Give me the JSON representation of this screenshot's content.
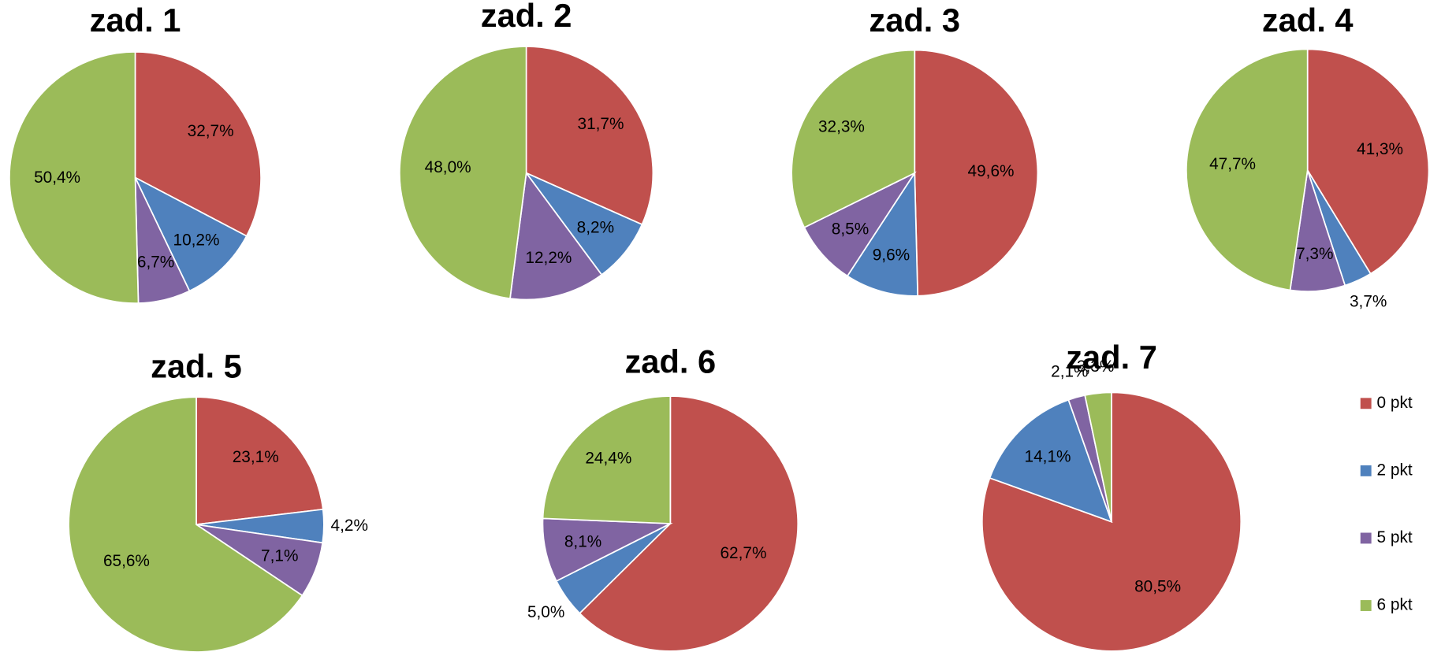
{
  "chart_data": [
    {
      "type": "pie",
      "title": "zad. 1",
      "categories": [
        "0 pkt",
        "2 pkt",
        "5 pkt",
        "6 pkt"
      ],
      "colors": [
        "#c0504d",
        "#4f81bd",
        "#8064a2",
        "#9bbb59"
      ],
      "values": [
        32.7,
        10.2,
        6.7,
        50.4
      ],
      "value_labels": [
        "32,7%",
        "10,2%",
        "6,7%",
        "50,4%"
      ],
      "legend": "right"
    },
    {
      "type": "pie",
      "title": "zad. 2",
      "categories": [
        "0 pkt",
        "2 pkt",
        "5 pkt",
        "6 pkt"
      ],
      "colors": [
        "#c0504d",
        "#4f81bd",
        "#8064a2",
        "#9bbb59"
      ],
      "values": [
        31.7,
        8.2,
        12.2,
        48.0
      ],
      "value_labels": [
        "31,7%",
        "8,2%",
        "12,2%",
        "48,0%"
      ]
    },
    {
      "type": "pie",
      "title": "zad. 3",
      "categories": [
        "0 pkt",
        "2 pkt",
        "5 pkt",
        "6 pkt"
      ],
      "colors": [
        "#c0504d",
        "#4f81bd",
        "#8064a2",
        "#9bbb59"
      ],
      "values": [
        49.6,
        9.6,
        8.5,
        32.3
      ],
      "value_labels": [
        "49,6%",
        "9,6%",
        "8,5%",
        "32,3%"
      ]
    },
    {
      "type": "pie",
      "title": "zad. 4",
      "categories": [
        "0 pkt",
        "2 pkt",
        "5 pkt",
        "6 pkt"
      ],
      "colors": [
        "#c0504d",
        "#4f81bd",
        "#8064a2",
        "#9bbb59"
      ],
      "values": [
        41.3,
        3.7,
        7.3,
        47.7
      ],
      "value_labels": [
        "41,3%",
        "3,7%",
        "7,3%",
        "47,7%"
      ]
    },
    {
      "type": "pie",
      "title": "zad. 5",
      "categories": [
        "0 pkt",
        "2 pkt",
        "5 pkt",
        "6 pkt"
      ],
      "colors": [
        "#c0504d",
        "#4f81bd",
        "#8064a2",
        "#9bbb59"
      ],
      "values": [
        23.1,
        4.2,
        7.1,
        65.6
      ],
      "value_labels": [
        "23,1%",
        "4,2%",
        "7,1%",
        "65,6%"
      ]
    },
    {
      "type": "pie",
      "title": "zad. 6",
      "categories": [
        "0 pkt",
        "2 pkt",
        "5 pkt",
        "6 pkt"
      ],
      "colors": [
        "#c0504d",
        "#4f81bd",
        "#8064a2",
        "#9bbb59"
      ],
      "values": [
        62.7,
        5.0,
        8.1,
        24.4
      ],
      "value_labels": [
        "62,7%",
        "5,0%",
        "8,1%",
        "24,4%"
      ]
    },
    {
      "type": "pie",
      "title": "zad. 7",
      "categories": [
        "0 pkt",
        "2 pkt",
        "5 pkt",
        "6 pkt"
      ],
      "colors": [
        "#c0504d",
        "#4f81bd",
        "#8064a2",
        "#9bbb59"
      ],
      "values": [
        80.5,
        14.1,
        2.1,
        3.3
      ],
      "value_labels": [
        "80,5%",
        "14,1%",
        "2,1%",
        "3,3%"
      ]
    }
  ]
}
